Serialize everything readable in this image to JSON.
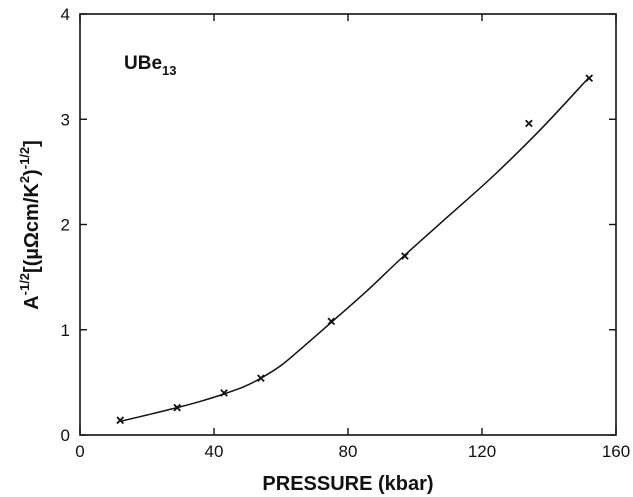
{
  "chart_data": {
    "type": "scatter",
    "annotation": {
      "base": "UBe",
      "subscript": "13"
    },
    "xlabel": "PRESSURE (kbar)",
    "ylabel": {
      "main": "A",
      "exp1": "-1/2",
      "bracket_open": "[(",
      "unit": "µΩcm/K",
      "exp2": "2",
      "paren_close": ")",
      "exp3": "-1/2",
      "bracket_close": "]"
    },
    "xlim": [
      0,
      160
    ],
    "ylim": [
      0,
      4
    ],
    "x_ticks": [
      0,
      40,
      80,
      120,
      160
    ],
    "x_tick_labels": [
      "0",
      "40",
      "80",
      "120",
      "160"
    ],
    "y_ticks": [
      0,
      1,
      2,
      3,
      4
    ],
    "y_tick_labels": [
      "0",
      "1",
      "2",
      "3",
      "4"
    ],
    "grid": false,
    "legend": "none",
    "series": [
      {
        "marker": "x",
        "x": [
          12,
          29,
          43,
          54,
          75,
          97,
          134,
          152
        ],
        "y": [
          0.14,
          0.26,
          0.4,
          0.54,
          1.08,
          1.7,
          2.96,
          3.39
        ]
      }
    ],
    "fit_curve": {
      "style": "smooth-line",
      "x": [
        12,
        20,
        29,
        36,
        43,
        49,
        54,
        60,
        66,
        75,
        86,
        97,
        110,
        124,
        138,
        152
      ],
      "y": [
        0.13,
        0.19,
        0.26,
        0.32,
        0.39,
        0.46,
        0.54,
        0.66,
        0.82,
        1.07,
        1.38,
        1.71,
        2.08,
        2.48,
        2.92,
        3.4
      ]
    }
  }
}
